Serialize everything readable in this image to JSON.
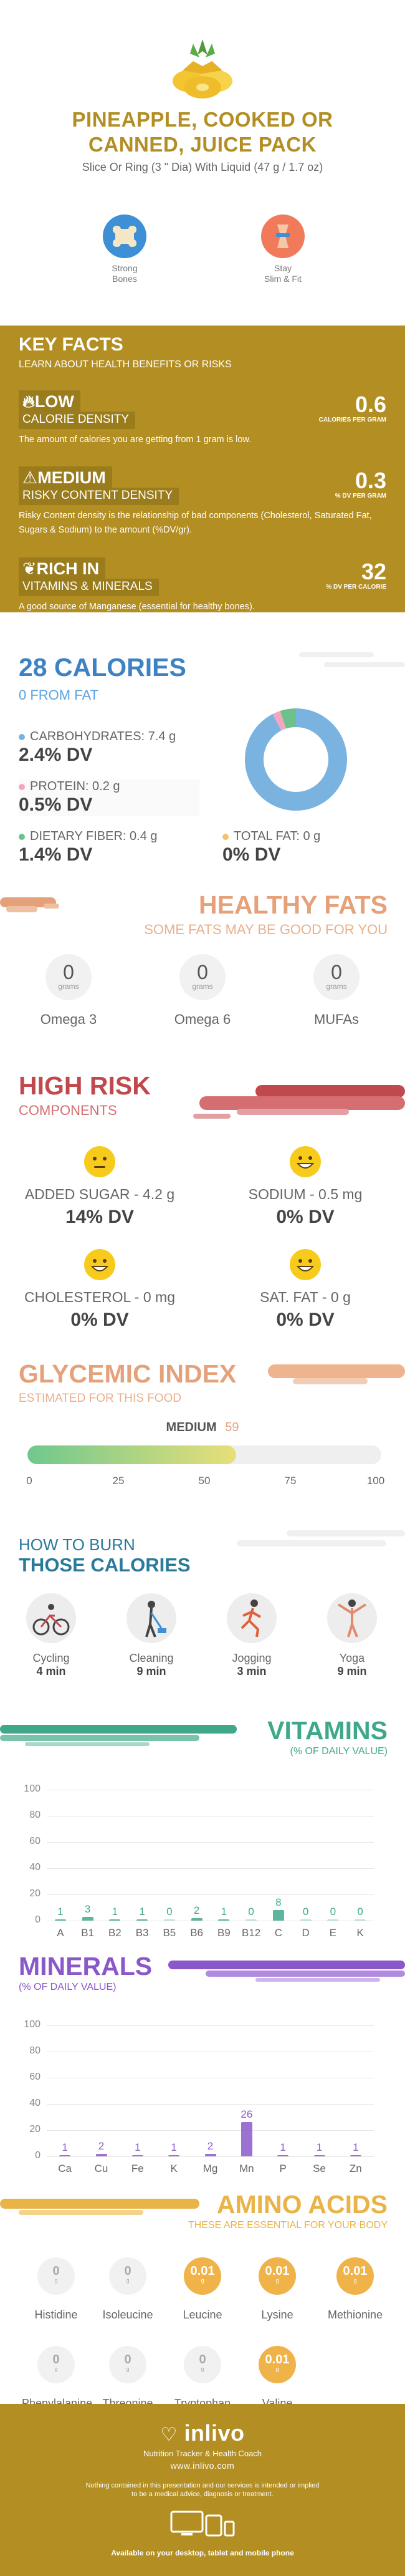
{
  "header": {
    "title_line1": "PINEAPPLE, COOKED OR",
    "title_line2": "CANNED, JUICE PACK",
    "serving": "Slice Or Ring (3 \" Dia) With Liquid (47 g / 1.7 oz)",
    "badges": [
      {
        "line1": "Strong",
        "line2": "Bones"
      },
      {
        "line1": "Stay",
        "line2": "Slim & Fit"
      }
    ]
  },
  "key_facts": {
    "title": "KEY FACTS",
    "subtitle": "LEARN ABOUT HEALTH BENEFITS OR RISKS",
    "rows": [
      {
        "level": "LOW",
        "name": "CALORIE DENSITY",
        "value": "0.6",
        "unit": "CALORIES PER GRAM",
        "desc": "The amount of calories you are getting from 1 gram is low."
      },
      {
        "level": "MEDIUM",
        "name": "RISKY CONTENT DENSITY",
        "value": "0.3",
        "unit": "% DV PER GRAM",
        "desc": "Risky Content density is the relationship of bad components (Cholesterol, Saturated Fat, Sugars & Sodium) to the amount (%DV/gr)."
      },
      {
        "level": "RICH  IN",
        "name": "VITAMINS & MINERALS",
        "value": "32",
        "unit": "% DV PER CALORIE",
        "desc": "A good source of Manganese (essential for healthy bones)."
      }
    ]
  },
  "calories": {
    "title": "28 CALORIES",
    "subtitle": "0 FROM FAT",
    "carbs_label": "CARBOHYDRATES: 7.4 g",
    "carbs_dv": "2.4% DV",
    "protein_label": "PROTEIN: 0.2 g",
    "protein_dv": "0.5% DV",
    "fiber_label": "DIETARY FIBER: 0.4 g",
    "fiber_dv": "1.4% DV",
    "fat_label": "TOTAL FAT: 0 g",
    "fat_dv": "0% DV",
    "colors": {
      "carbs": "#7ab2e0",
      "protein": "#f4a6c0",
      "fiber": "#6ec18a",
      "fat": "#f5c16c"
    }
  },
  "chart_data": [
    {
      "type": "pie",
      "categories": [
        "Carbohydrates",
        "Protein",
        "Dietary Fiber",
        "Total Fat"
      ],
      "values": [
        92.5,
        2.5,
        5.0,
        0
      ]
    },
    {
      "type": "bar",
      "title": "VITAMINS",
      "subtitle": "(% OF DAILY VALUE)",
      "categories": [
        "A",
        "B1",
        "B2",
        "B3",
        "B5",
        "B6",
        "B9",
        "B12",
        "C",
        "D",
        "E",
        "K"
      ],
      "values": [
        1,
        3,
        1,
        1,
        0,
        2,
        1,
        0,
        8,
        0,
        0,
        0
      ],
      "ylim": [
        0,
        100
      ],
      "yticks": [
        "100",
        "80",
        "60",
        "40",
        "20",
        "0"
      ]
    },
    {
      "type": "bar",
      "title": "MINERALS",
      "subtitle": "(% OF DAILY VALUE)",
      "categories": [
        "Ca",
        "Cu",
        "Fe",
        "K",
        "Mg",
        "Mn",
        "P",
        "Se",
        "Zn"
      ],
      "values": [
        1,
        2,
        1,
        1,
        2,
        26,
        1,
        1,
        1
      ],
      "ylim": [
        0,
        100
      ],
      "yticks": [
        "100",
        "80",
        "60",
        "40",
        "20",
        "0"
      ]
    }
  ],
  "healthy_fats": {
    "title": "HEALTHY FATS",
    "subtitle": "SOME FATS MAY BE GOOD FOR YOU",
    "items": [
      {
        "value": "0",
        "unit": "grams",
        "name": "Omega 3"
      },
      {
        "value": "0",
        "unit": "grams",
        "name": "Omega 6"
      },
      {
        "value": "0",
        "unit": "grams",
        "name": "MUFAs"
      }
    ]
  },
  "high_risk": {
    "title": "HIGH RISK",
    "subtitle": "COMPONENTS",
    "items": [
      {
        "label": "ADDED SUGAR - 4.2 g",
        "dv": "14% DV"
      },
      {
        "label": "SODIUM - 0.5 mg",
        "dv": "0% DV"
      },
      {
        "label": "CHOLESTEROL - 0 mg",
        "dv": "0% DV"
      },
      {
        "label": "SAT. FAT - 0 g",
        "dv": "0% DV"
      }
    ]
  },
  "glycemic": {
    "title": "GLYCEMIC INDEX",
    "subtitle": "ESTIMATED FOR THIS FOOD",
    "level": "MEDIUM",
    "value": "59",
    "fraction": 0.59,
    "ticks": [
      "0",
      "25",
      "50",
      "75",
      "100"
    ]
  },
  "burn": {
    "title_line1": "HOW TO BURN",
    "title_line2": "THOSE CALORIES",
    "items": [
      {
        "name": "Cycling",
        "value": "4 min",
        "icon": "cycling-icon"
      },
      {
        "name": "Cleaning",
        "value": "9 min",
        "icon": "cleaning-icon"
      },
      {
        "name": "Jogging",
        "value": "3 min",
        "icon": "jogging-icon"
      },
      {
        "name": "Yoga",
        "value": "9 min",
        "icon": "yoga-icon"
      }
    ]
  },
  "amino": {
    "title": "AMINO ACIDS",
    "subtitle": "THESE ARE ESSENTIAL FOR YOUR BODY",
    "items": [
      {
        "value": "0",
        "unit": "g",
        "name": "Histidine",
        "high": false
      },
      {
        "value": "0",
        "unit": "g",
        "name": "Isoleucine",
        "high": false
      },
      {
        "value": "0.01",
        "unit": "g",
        "name": "Leucine",
        "high": true
      },
      {
        "value": "0.01",
        "unit": "g",
        "name": "Lysine",
        "high": true
      },
      {
        "value": "0.01",
        "unit": "g",
        "name": "Methionine",
        "high": true
      },
      {
        "value": "0",
        "unit": "g",
        "name": "Phenylalanine",
        "high": false
      },
      {
        "value": "0",
        "unit": "g",
        "name": "Threonine",
        "high": false
      },
      {
        "value": "0",
        "unit": "g",
        "name": "Tryptophan",
        "high": false
      },
      {
        "value": "0.01",
        "unit": "g",
        "name": "Valine",
        "high": true
      }
    ]
  },
  "footer": {
    "brand": "inlivo",
    "tagline": "Nutrition Tracker & Health Coach",
    "url": "www.inlivo.com",
    "disclaimer_line1": "Nothing contained in this presentation and our services is intended or implied",
    "disclaimer_line2": "to be a medical advice, diagnosis or treatment.",
    "available": "Available on your desktop, tablet and mobile phone"
  },
  "colors": {
    "gold": "#b28e23",
    "blue": "#3e82c3",
    "orange": "#e5a27a",
    "red": "#c0494e",
    "teal": "#3fa88b",
    "purple": "#8a58c9",
    "amber": "#e9b347"
  }
}
